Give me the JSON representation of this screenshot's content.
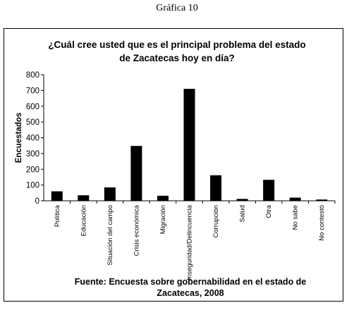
{
  "caption": "Gráfica 10",
  "chart_data": {
    "type": "bar",
    "title": [
      "¿Cuál cree usted que es el principal problema del estado",
      "de Zacatecas hoy en día?"
    ],
    "ylabel": "Encuestados",
    "xlabel": "",
    "ylim": [
      0,
      800
    ],
    "yticks": [
      0,
      100,
      200,
      300,
      400,
      500,
      600,
      700,
      800
    ],
    "grid": false,
    "bar_color": "#000000",
    "categories": [
      "Política",
      "Educación",
      "Situación del campo",
      "Crisis económica",
      "Migración",
      "Inseguridad/Delincuencia",
      "Corrupción",
      "Salud",
      "Otra",
      "No sabe",
      "No contestó"
    ],
    "values": [
      60,
      35,
      85,
      348,
      32,
      710,
      162,
      12,
      133,
      20,
      8
    ]
  },
  "source": [
    "Fuente: Encuesta sobre gobernabilidad en el estado de",
    "Zacatecas, 2008"
  ]
}
